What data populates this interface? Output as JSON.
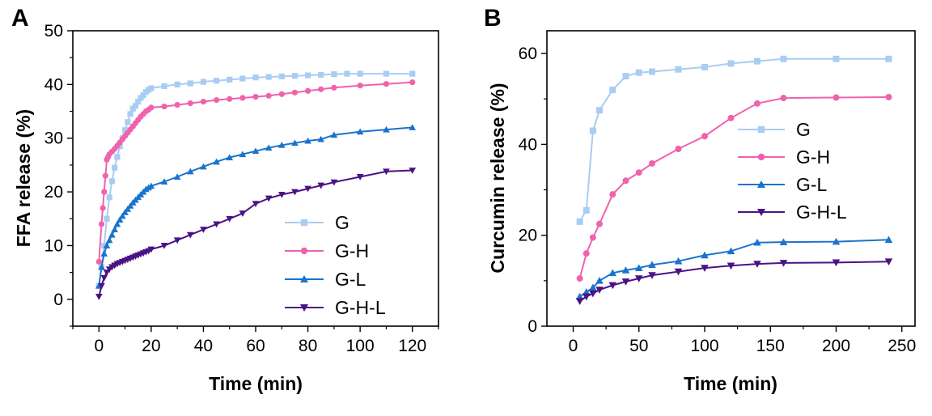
{
  "chart_data": [
    {
      "panel": "A",
      "type": "line",
      "xlabel": "Time (min)",
      "ylabel": "FFA release (%)",
      "xlim": [
        -10,
        130
      ],
      "ylim": [
        -5,
        50
      ],
      "xticks": [
        0,
        20,
        40,
        60,
        80,
        100,
        120
      ],
      "yticks": [
        0,
        10,
        20,
        30,
        40,
        50
      ],
      "legend": "bottom-right",
      "series": [
        {
          "name": "G",
          "color": "#a9cdf2",
          "marker": "square",
          "x": [
            0,
            1,
            2,
            3,
            4,
            5,
            6,
            7,
            8,
            9,
            10,
            11,
            12,
            13,
            14,
            15,
            16,
            17,
            18,
            19,
            20,
            25,
            30,
            35,
            40,
            45,
            50,
            55,
            60,
            65,
            70,
            75,
            80,
            85,
            90,
            95,
            100,
            110,
            120
          ],
          "y": [
            2.5,
            6,
            10,
            15,
            19,
            22,
            24.5,
            26.5,
            28.5,
            30,
            31.5,
            33,
            34.5,
            35.5,
            36,
            36.8,
            37.5,
            38,
            38.6,
            39,
            39.3,
            39.7,
            40,
            40.2,
            40.5,
            40.7,
            40.9,
            41.1,
            41.3,
            41.4,
            41.5,
            41.6,
            41.7,
            41.8,
            41.9,
            42,
            42,
            42,
            42
          ]
        },
        {
          "name": "G-H",
          "color": "#f062ad",
          "marker": "circle",
          "x": [
            0,
            1,
            1.5,
            2,
            2.5,
            3,
            3.5,
            4,
            5,
            6,
            7,
            8,
            9,
            10,
            11,
            12,
            13,
            14,
            15,
            16,
            17,
            18,
            19,
            20,
            25,
            30,
            35,
            40,
            45,
            50,
            55,
            60,
            65,
            70,
            75,
            80,
            85,
            90,
            100,
            110,
            120
          ],
          "y": [
            7,
            14,
            17,
            20,
            23,
            26,
            26.5,
            27,
            27.5,
            28,
            28.6,
            29.2,
            29.8,
            30.4,
            31,
            31.6,
            32.2,
            32.8,
            33.4,
            34,
            34.5,
            35,
            35.3,
            35.7,
            35.9,
            36.2,
            36.5,
            36.8,
            37.1,
            37.3,
            37.5,
            37.7,
            37.9,
            38.2,
            38.5,
            38.8,
            39.1,
            39.4,
            39.8,
            40.1,
            40.4
          ]
        },
        {
          "name": "G-L",
          "color": "#1a73cc",
          "marker": "triangle-up",
          "x": [
            0,
            1,
            2,
            3,
            4,
            5,
            6,
            7,
            8,
            9,
            10,
            11,
            12,
            13,
            14,
            15,
            16,
            17,
            18,
            19,
            20,
            25,
            30,
            35,
            40,
            45,
            50,
            55,
            60,
            65,
            70,
            75,
            80,
            85,
            90,
            100,
            110,
            120
          ],
          "y": [
            2.5,
            6,
            8.5,
            10,
            11,
            12,
            13,
            14,
            14.8,
            15.5,
            16.2,
            16.8,
            17.4,
            18,
            18.5,
            19,
            19.5,
            20,
            20.5,
            20.8,
            21.1,
            21.9,
            22.8,
            23.8,
            24.7,
            25.6,
            26.4,
            27,
            27.6,
            28.2,
            28.7,
            29.1,
            29.5,
            29.8,
            30.6,
            31.2,
            31.6,
            32
          ]
        },
        {
          "name": "G-H-L",
          "color": "#4a1385",
          "marker": "triangle-down",
          "x": [
            0,
            1,
            2,
            3,
            4,
            5,
            6,
            7,
            8,
            9,
            10,
            11,
            12,
            13,
            14,
            15,
            16,
            17,
            18,
            19,
            20,
            25,
            30,
            35,
            40,
            45,
            50,
            55,
            60,
            65,
            70,
            75,
            80,
            85,
            90,
            100,
            110,
            120
          ],
          "y": [
            0.5,
            2.5,
            4,
            5,
            5.6,
            6,
            6.3,
            6.6,
            6.8,
            7,
            7.2,
            7.4,
            7.6,
            7.8,
            8,
            8.2,
            8.4,
            8.6,
            8.8,
            9,
            9.3,
            10,
            11,
            12,
            13,
            14,
            15,
            16,
            17.8,
            18.8,
            19.5,
            20,
            20.6,
            21.2,
            21.8,
            22.8,
            23.8,
            24
          ]
        }
      ]
    },
    {
      "panel": "B",
      "type": "line",
      "xlabel": "Time (min)",
      "ylabel": "Curcumin release (%)",
      "xlim": [
        -20,
        260
      ],
      "ylim": [
        0,
        65
      ],
      "xticks": [
        0,
        50,
        100,
        150,
        200,
        250
      ],
      "yticks": [
        0,
        20,
        40,
        60
      ],
      "legend": "center-right",
      "series": [
        {
          "name": "G",
          "color": "#a9cdf2",
          "marker": "square",
          "x": [
            5,
            10,
            15,
            20,
            30,
            40,
            50,
            60,
            80,
            100,
            120,
            140,
            160,
            200,
            240
          ],
          "y": [
            23,
            25.5,
            43,
            47.5,
            52,
            55,
            55.8,
            56,
            56.5,
            57,
            57.8,
            58.3,
            58.8,
            58.8,
            58.8
          ]
        },
        {
          "name": "G-H",
          "color": "#f062ad",
          "marker": "circle",
          "x": [
            5,
            10,
            15,
            20,
            30,
            40,
            50,
            60,
            80,
            100,
            120,
            140,
            160,
            200,
            240
          ],
          "y": [
            10.5,
            16,
            19.5,
            22.5,
            29,
            32,
            33.8,
            35.8,
            39,
            41.8,
            45.8,
            49,
            50.2,
            50.3,
            50.4
          ]
        },
        {
          "name": "G-L",
          "color": "#1a73cc",
          "marker": "triangle-up",
          "x": [
            5,
            10,
            15,
            20,
            30,
            40,
            50,
            60,
            80,
            100,
            120,
            140,
            160,
            200,
            240
          ],
          "y": [
            6.5,
            7.5,
            8.5,
            10,
            11.7,
            12.3,
            12.8,
            13.5,
            14.3,
            15.6,
            16.5,
            18.4,
            18.5,
            18.6,
            19
          ]
        },
        {
          "name": "G-H-L",
          "color": "#4a1385",
          "marker": "triangle-down",
          "x": [
            5,
            10,
            15,
            20,
            30,
            40,
            50,
            60,
            80,
            100,
            120,
            140,
            160,
            200,
            240
          ],
          "y": [
            5.5,
            6.5,
            7.2,
            8,
            9,
            9.8,
            10.5,
            11.2,
            12,
            12.8,
            13.3,
            13.7,
            13.9,
            14,
            14.2
          ]
        }
      ]
    }
  ]
}
